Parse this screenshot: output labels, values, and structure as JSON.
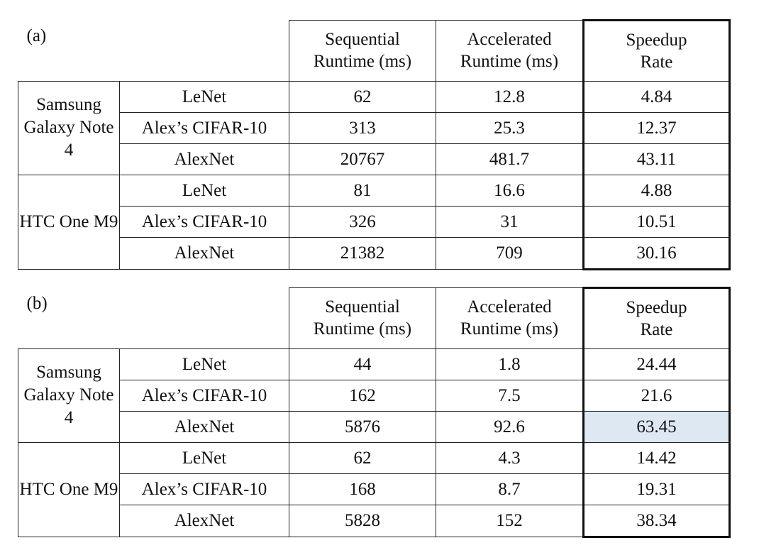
{
  "tables": [
    {
      "label": "(a)",
      "headers": [
        [
          "Sequential",
          "Runtime (ms)"
        ],
        [
          "Accelerated",
          "Runtime (ms)"
        ],
        [
          "Speedup",
          "Rate"
        ]
      ],
      "groups": [
        {
          "device": "Samsung Galaxy Note 4",
          "rows": [
            [
              "LeNet",
              62,
              12.8,
              4.84
            ],
            [
              "Alex’s CIFAR-10",
              313,
              25.3,
              12.37
            ],
            [
              "AlexNet",
              20767,
              481.7,
              43.11
            ]
          ]
        },
        {
          "device": "HTC One M9",
          "rows": [
            [
              "LeNet",
              81,
              16.6,
              4.88
            ],
            [
              "Alex’s CIFAR-10",
              326,
              31,
              10.51
            ],
            [
              "AlexNet",
              21382,
              709,
              30.16
            ]
          ]
        }
      ]
    },
    {
      "label": "(b)",
      "headers": [
        [
          "Sequential",
          "Runtime (ms)"
        ],
        [
          "Accelerated",
          "Runtime (ms)"
        ],
        [
          "Speedup",
          "Rate"
        ]
      ],
      "groups": [
        {
          "device": "Samsung Galaxy Note 4",
          "rows": [
            [
              "LeNet",
              44,
              1.8,
              24.44
            ],
            [
              "Alex’s CIFAR-10",
              162,
              7.5,
              21.6
            ],
            [
              "AlexNet",
              5876,
              92.6,
              63.45
            ]
          ]
        },
        {
          "device": "HTC One M9",
          "rows": [
            [
              "LeNet",
              62,
              4.3,
              14.42
            ],
            [
              "Alex’s CIFAR-10",
              168,
              8.7,
              19.31
            ],
            [
              "AlexNet",
              5828,
              152,
              38.34
            ]
          ]
        }
      ]
    }
  ]
}
